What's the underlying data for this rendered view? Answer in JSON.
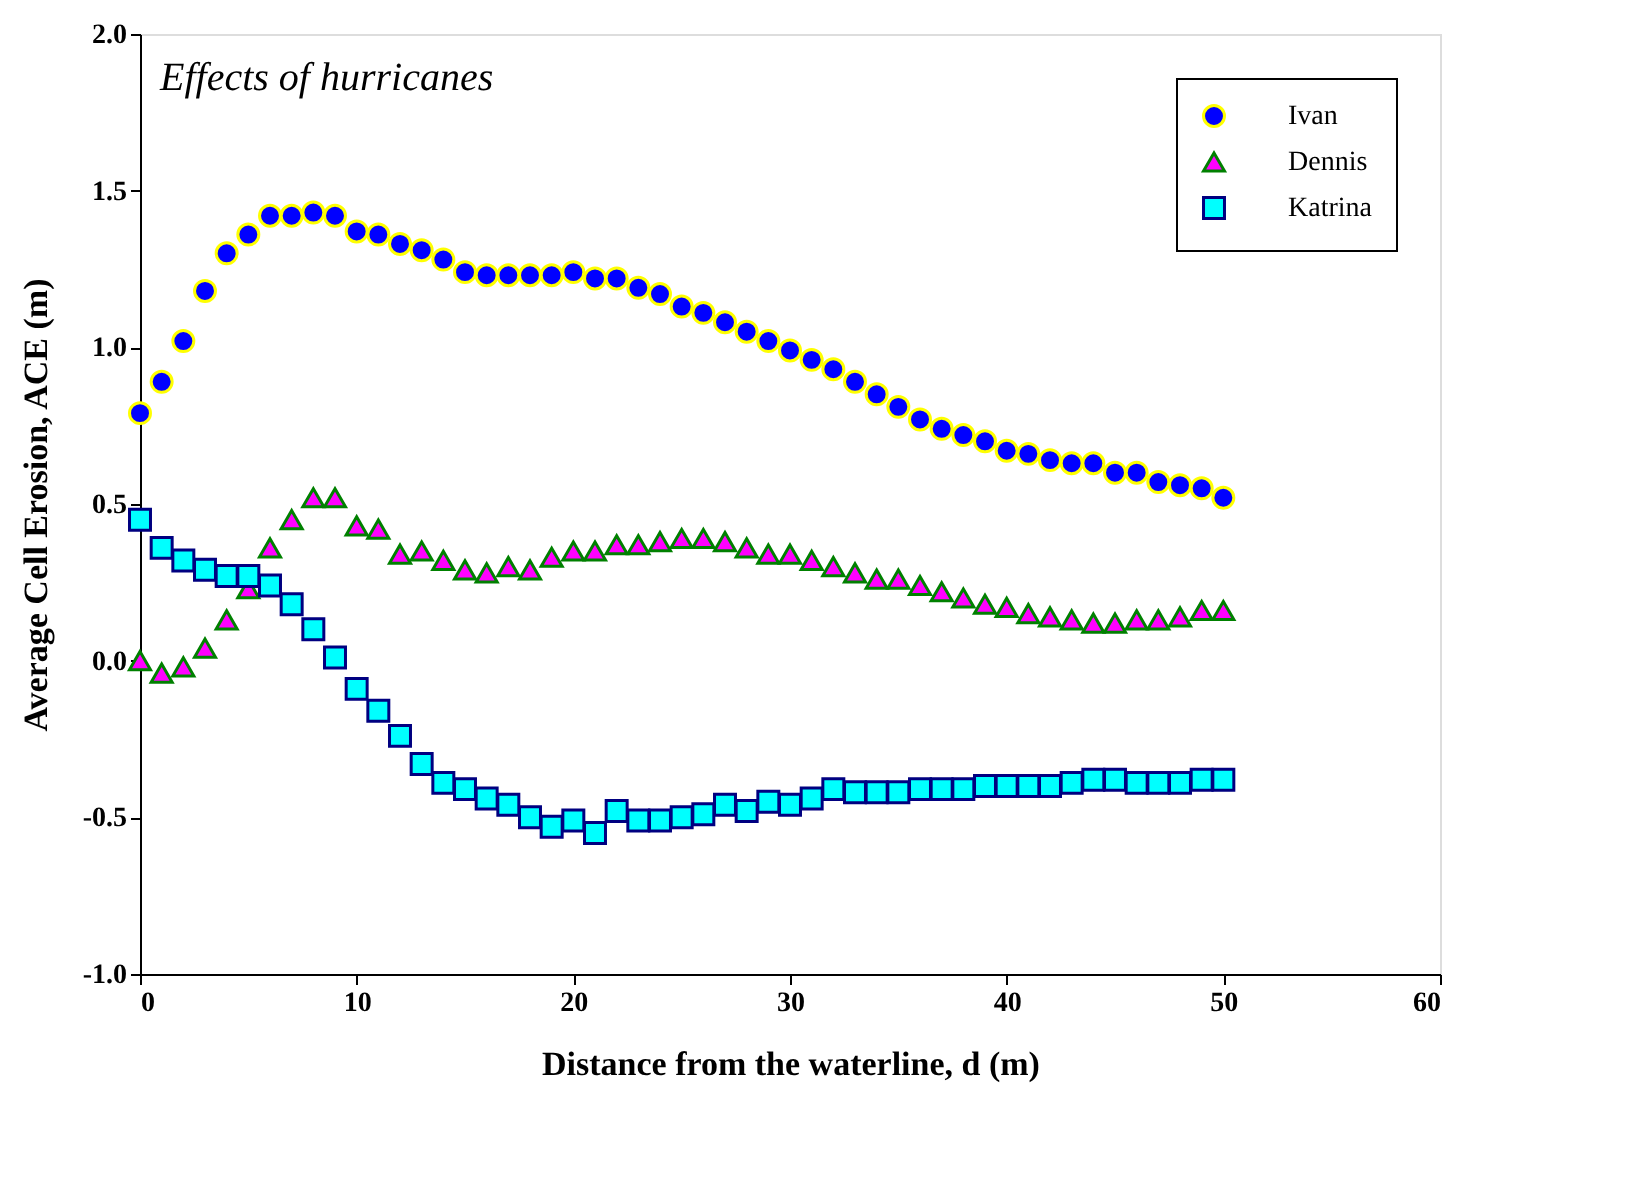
{
  "chart_data": {
    "type": "scatter",
    "annotations": [
      "Effects of hurricanes"
    ],
    "xlabel": "Distance from the waterline, d (m)",
    "ylabel": "Average Cell Erosion, ACE (m)",
    "x": [
      0,
      1,
      2,
      3,
      4,
      5,
      6,
      7,
      8,
      9,
      10,
      11,
      12,
      13,
      14,
      15,
      16,
      17,
      18,
      19,
      20,
      21,
      22,
      23,
      24,
      25,
      26,
      27,
      28,
      29,
      30,
      31,
      32,
      33,
      34,
      35,
      36,
      37,
      38,
      39,
      40,
      41,
      42,
      43,
      44,
      45,
      46,
      47,
      48,
      49,
      50
    ],
    "series": [
      {
        "name": "Ivan",
        "color": "#0000ff",
        "marker": "circle",
        "values": [
          0.79,
          0.89,
          1.02,
          1.18,
          1.3,
          1.36,
          1.42,
          1.42,
          1.43,
          1.42,
          1.37,
          1.36,
          1.33,
          1.31,
          1.28,
          1.24,
          1.23,
          1.23,
          1.23,
          1.23,
          1.24,
          1.22,
          1.22,
          1.19,
          1.17,
          1.13,
          1.11,
          1.08,
          1.05,
          1.02,
          0.99,
          0.96,
          0.93,
          0.89,
          0.85,
          0.81,
          0.77,
          0.74,
          0.72,
          0.7,
          0.67,
          0.66,
          0.64,
          0.63,
          0.63,
          0.6,
          0.6,
          0.57,
          0.56,
          0.55,
          0.52
        ]
      },
      {
        "name": "Dennis",
        "color": "#ff00ff",
        "marker": "triangle",
        "values": [
          0.0,
          -0.04,
          -0.02,
          0.04,
          0.13,
          0.23,
          0.36,
          0.45,
          0.52,
          0.52,
          0.43,
          0.42,
          0.34,
          0.35,
          0.32,
          0.29,
          0.28,
          0.3,
          0.29,
          0.33,
          0.35,
          0.35,
          0.37,
          0.37,
          0.38,
          0.39,
          0.39,
          0.38,
          0.36,
          0.34,
          0.34,
          0.32,
          0.3,
          0.28,
          0.26,
          0.26,
          0.24,
          0.22,
          0.2,
          0.18,
          0.17,
          0.15,
          0.14,
          0.13,
          0.12,
          0.12,
          0.13,
          0.13,
          0.14,
          0.16,
          0.16
        ]
      },
      {
        "name": "Katrina",
        "color": "#00ffff",
        "marker": "square",
        "values": [
          0.45,
          0.36,
          0.32,
          0.29,
          0.27,
          0.27,
          0.24,
          0.18,
          0.1,
          0.01,
          -0.09,
          -0.16,
          -0.24,
          -0.33,
          -0.39,
          -0.41,
          -0.44,
          -0.46,
          -0.5,
          -0.53,
          -0.51,
          -0.55,
          -0.48,
          -0.51,
          -0.51,
          -0.5,
          -0.49,
          -0.46,
          -0.48,
          -0.45,
          -0.46,
          -0.44,
          -0.41,
          -0.42,
          -0.42,
          -0.42,
          -0.41,
          -0.41,
          -0.41,
          -0.4,
          -0.4,
          -0.4,
          -0.4,
          -0.39,
          -0.38,
          -0.38,
          -0.39,
          -0.39,
          -0.39,
          -0.38,
          -0.38
        ]
      }
    ],
    "xlim": [
      0,
      60
    ],
    "xticks": [
      0,
      10,
      20,
      30,
      40,
      50,
      60
    ],
    "ylim": [
      -1,
      2
    ],
    "yticks": [
      {
        "value": -1,
        "label": "-1.0"
      },
      {
        "value": -0.5,
        "label": "-0.5"
      },
      {
        "value": 0,
        "label": "0.0"
      },
      {
        "value": 0.5,
        "label": "0.5"
      },
      {
        "value": 1,
        "label": "1.0"
      },
      {
        "value": 1.5,
        "label": "1.5"
      },
      {
        "value": 2,
        "label": "2.0"
      }
    ],
    "grid": false,
    "legend": "top right"
  }
}
